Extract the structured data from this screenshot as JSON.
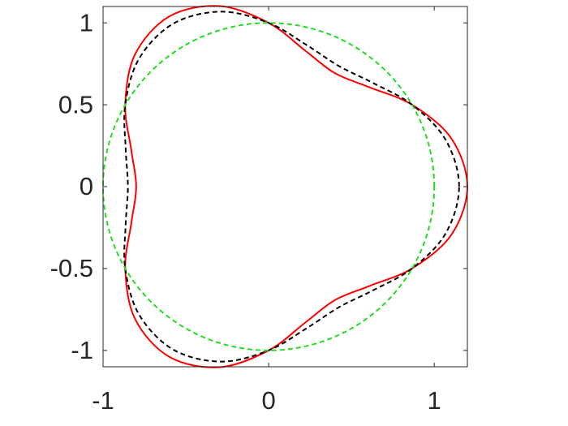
{
  "chart_data": {
    "type": "line",
    "xlim": [
      -1,
      1.2
    ],
    "ylim": [
      -1.1,
      1.1
    ],
    "xticks": [
      -1,
      0,
      1
    ],
    "yticks": [
      -1,
      -0.5,
      0,
      0.5,
      1
    ],
    "grid": false,
    "series": [
      {
        "color": "#ff0000",
        "dash": "solid",
        "x": [
          1.2,
          1.1025,
          0.866,
          0.6071,
          0.4,
          0.2222,
          0,
          -0.2954,
          -0.6,
          -0.8071,
          -0.866,
          -0.8293,
          -0.8,
          -0.8293,
          -0.866,
          -0.8071,
          -0.6,
          -0.2954,
          0,
          0.2222,
          0.4,
          0.6071,
          0.866,
          1.1025,
          1.2
        ],
        "values": [
          0,
          0.2954,
          0.5,
          0.6071,
          0.6928,
          0.8293,
          1,
          1.1025,
          1.0392,
          0.8071,
          0.5,
          0.2222,
          0,
          -0.2222,
          -0.5,
          -0.8071,
          -1.0392,
          -1.1025,
          -1,
          -0.8293,
          -0.6928,
          -0.6071,
          -0.5,
          -0.2954,
          0
        ]
      },
      {
        "color": "#000000",
        "dash": "dashed",
        "x": [
          1.15,
          1.0684,
          0.866,
          0.6321,
          0.425,
          0.2313,
          0,
          -0.2863,
          -0.575,
          -0.7821,
          -0.866,
          -0.8634,
          -0.85,
          -0.8634,
          -0.866,
          -0.7821,
          -0.575,
          -0.2863,
          0,
          0.2313,
          0.425,
          0.6321,
          0.866,
          1.0684,
          1.15
        ],
        "values": [
          0,
          0.2863,
          0.5,
          0.6321,
          0.7361,
          0.8634,
          1,
          1.0684,
          0.9959,
          0.7821,
          0.5,
          0.2313,
          0,
          -0.2313,
          -0.5,
          -0.7821,
          -0.9959,
          -1.0684,
          -1,
          -0.8634,
          -0.7361,
          -0.6321,
          -0.5,
          -0.2863,
          0
        ]
      },
      {
        "color": "#22dd22",
        "dash": "dashed",
        "x": [
          1,
          0.9659,
          0.866,
          0.7071,
          0.5,
          0.2588,
          0,
          -0.2588,
          -0.5,
          -0.7071,
          -0.866,
          -0.9659,
          -1,
          -0.9659,
          -0.866,
          -0.7071,
          -0.5,
          -0.2588,
          0,
          0.2588,
          0.5,
          0.7071,
          0.866,
          0.9659,
          1
        ],
        "values": [
          0,
          0.2588,
          0.5,
          0.7071,
          0.866,
          0.9659,
          1,
          0.9659,
          0.866,
          0.7071,
          0.5,
          0.2588,
          0,
          -0.2588,
          -0.5,
          -0.7071,
          -0.866,
          -0.9659,
          -1,
          -0.9659,
          -0.866,
          -0.7071,
          -0.5,
          -0.2588,
          0
        ]
      }
    ]
  }
}
